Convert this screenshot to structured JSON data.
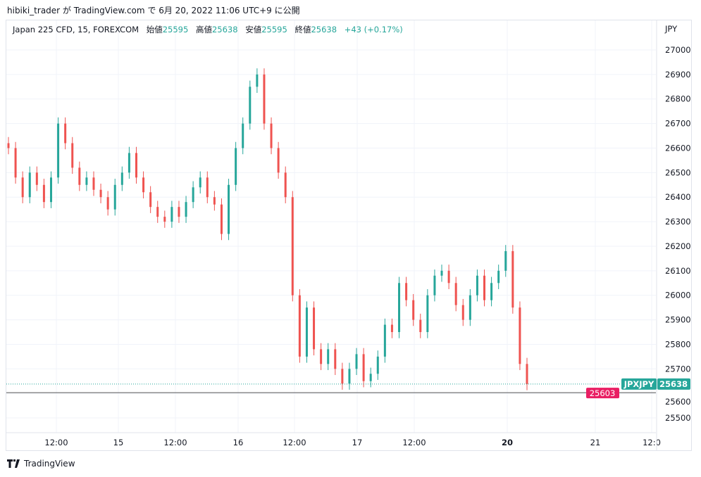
{
  "published": "hibiki_trader が TradingView.com で 6月 20, 2022 11:06 UTC+9 に公開",
  "legend": {
    "symbol": "Japan 225 CFD, 15, FOREXCOM",
    "open_label": "始値",
    "open": "25595",
    "high_label": "高値",
    "high": "25638",
    "low_label": "安値",
    "low": "25595",
    "close_label": "終値",
    "close": "25638",
    "change": "+43 (+0.17%)"
  },
  "currency": "JPY",
  "branding": "TradingView",
  "colors": {
    "up": "#26a69a",
    "down": "#ef5350",
    "last_price_tag": "#26a69a",
    "bid_tag": "#e91e63"
  },
  "chart_data": {
    "type": "candlestick",
    "title": "Japan 225 CFD, 15, FOREXCOM",
    "ylim": [
      25450,
      27080
    ],
    "y_ticks": [
      25500,
      25600,
      25700,
      25800,
      25900,
      26000,
      26100,
      26200,
      26300,
      26400,
      26500,
      26600,
      26700,
      26800,
      26900,
      27000
    ],
    "x_ticks": [
      "12:00",
      "15",
      "12:00",
      "16",
      "12:00",
      "17",
      "12:00",
      "20",
      "21",
      "12:0"
    ],
    "grid": true,
    "closes": [
      26600,
      26480,
      26400,
      26500,
      26450,
      26380,
      26480,
      26700,
      26620,
      26520,
      26450,
      26480,
      26430,
      26400,
      26350,
      26450,
      26500,
      26580,
      26480,
      26420,
      26360,
      26320,
      26300,
      26360,
      26320,
      26380,
      26440,
      26480,
      26400,
      26370,
      26250,
      26450,
      26600,
      26700,
      26850,
      26900,
      26700,
      26600,
      26500,
      26400,
      26000,
      25750,
      25950,
      25780,
      25720,
      25780,
      25700,
      25640,
      25700,
      25760,
      25650,
      25680,
      25750,
      25880,
      25850,
      26050,
      25980,
      25900,
      25850,
      26000,
      26080,
      26100,
      26050,
      25960,
      25900,
      26000,
      26080,
      25980,
      26050,
      26100,
      26180,
      25950,
      25720,
      25638
    ],
    "last_price": {
      "label": "JPXJPY",
      "value": 25638
    },
    "bid_price": 25603
  }
}
